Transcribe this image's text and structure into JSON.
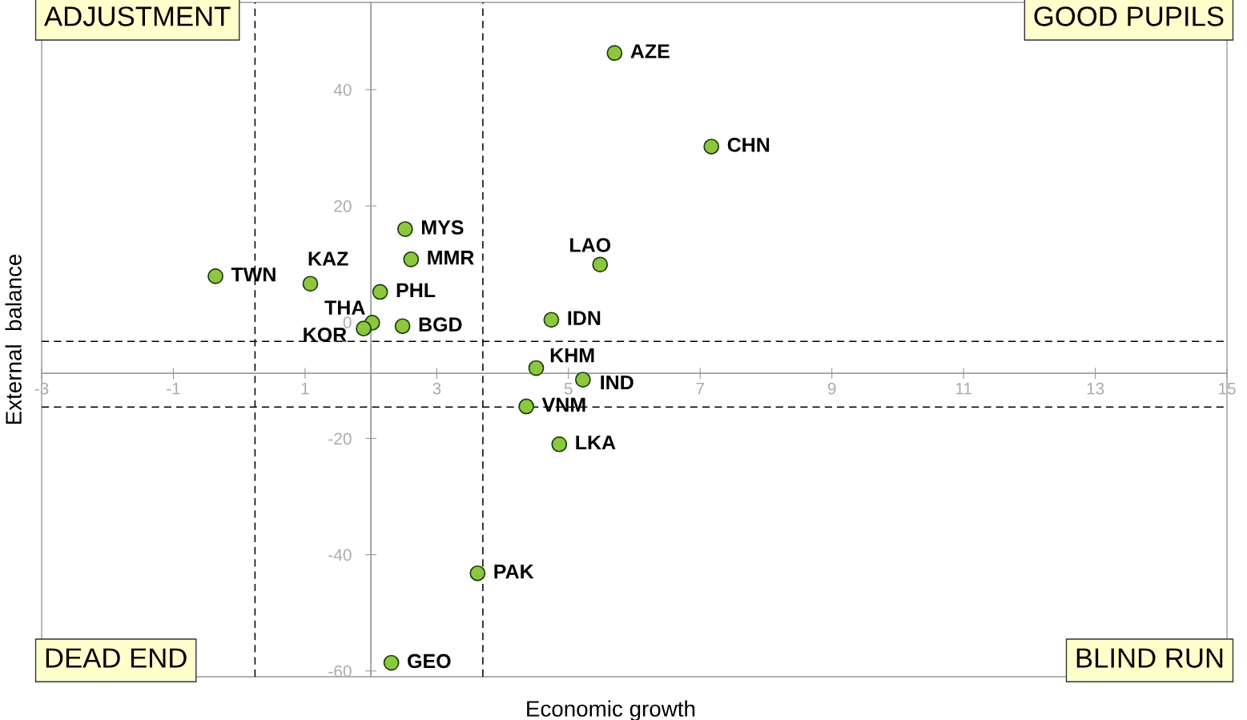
{
  "chart_data": {
    "type": "scatter",
    "xlabel": "Economic growth",
    "ylabel": "External  balance",
    "xlim": [
      -3,
      15
    ],
    "ylim": [
      -61,
      55
    ],
    "xticks": [
      -3,
      -1,
      1,
      3,
      5,
      7,
      9,
      11,
      13,
      15
    ],
    "yticks": [
      -60,
      -40,
      -20,
      0,
      20,
      40
    ],
    "grid": false,
    "marker": "circle",
    "series": [
      {
        "color": "#8dc63f",
        "x": [
          5.7,
          7.17,
          2.52,
          2.61,
          5.48,
          -0.36,
          1.08,
          2.14,
          4.74,
          2.02,
          1.89,
          2.48,
          4.51,
          5.22,
          4.36,
          4.86,
          3.62,
          2.31
        ],
        "values": [
          46.3,
          30.2,
          16.0,
          10.8,
          9.9,
          7.9,
          6.6,
          5.2,
          0.4,
          -0.1,
          -1.1,
          -0.7,
          -7.9,
          -9.9,
          -14.5,
          -21.0,
          -43.2,
          -58.6
        ]
      }
    ],
    "ref_lines": [
      {
        "axis": "x",
        "value": 0.24,
        "line_style": "dashed",
        "color": "#000000"
      },
      {
        "axis": "x",
        "value": 3.7,
        "line_style": "dashed",
        "color": "#000000"
      },
      {
        "axis": "y",
        "value": -3.3,
        "line_style": "dashed",
        "color": "#000000"
      },
      {
        "axis": "y",
        "value": -14.6,
        "line_style": "dashed",
        "color": "#000000"
      },
      {
        "axis": "x",
        "value": 2,
        "line_style": "solid",
        "color": "#999999"
      },
      {
        "axis": "y",
        "value": -8.8,
        "line_style": "solid",
        "color": "#999999"
      }
    ],
    "annotations": [
      "ADJUSTMENT",
      "GOOD PUPILS",
      "DEAD END",
      "BLIND RUN",
      {
        "text": "AZE",
        "x": 5.7,
        "y": 46.3
      },
      {
        "text": "CHN",
        "x": 7.17,
        "y": 30.2
      },
      {
        "text": "MYS",
        "x": 2.52,
        "y": 16.0
      },
      {
        "text": "MMR",
        "x": 2.61,
        "y": 10.8
      },
      {
        "text": "LAO",
        "x": 5.48,
        "y": 9.9
      },
      {
        "text": "TWN",
        "x": -0.36,
        "y": 7.9
      },
      {
        "text": "KAZ",
        "x": 1.08,
        "y": 6.6
      },
      {
        "text": "PHL",
        "x": 2.14,
        "y": 5.2
      },
      {
        "text": "IDN",
        "x": 4.74,
        "y": 0.4
      },
      {
        "text": "THA",
        "x": 2.02,
        "y": -0.1
      },
      {
        "text": "KOR",
        "x": 1.89,
        "y": -1.1
      },
      {
        "text": "BGD",
        "x": 2.48,
        "y": -0.7
      },
      {
        "text": "KHM",
        "x": 4.51,
        "y": -7.9
      },
      {
        "text": "IND",
        "x": 5.22,
        "y": -9.9
      },
      {
        "text": "VNM",
        "x": 4.36,
        "y": -14.5
      },
      {
        "text": "LKA",
        "x": 4.86,
        "y": -21.0
      },
      {
        "text": "PAK",
        "x": 3.62,
        "y": -43.2
      },
      {
        "text": "GEO",
        "x": 2.31,
        "y": -58.6
      }
    ]
  }
}
